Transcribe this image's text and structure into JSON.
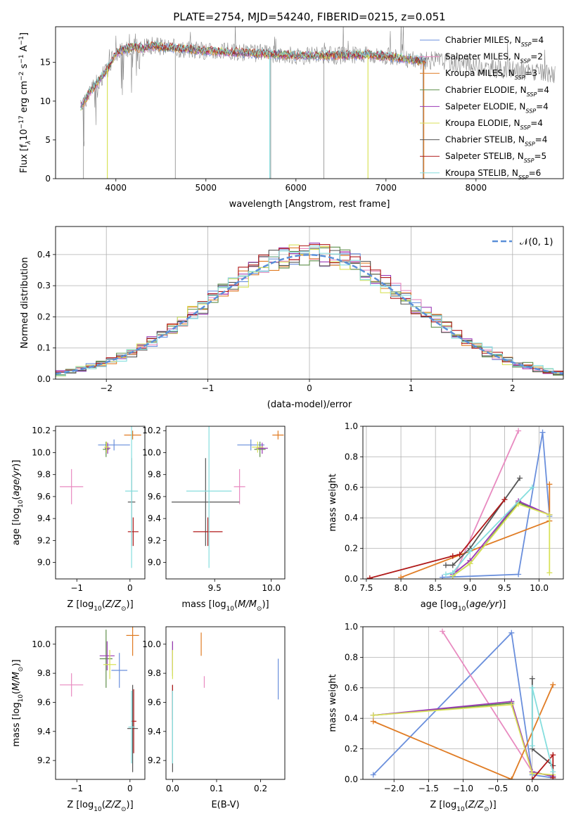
{
  "title": "PLATE=2754, MJD=54240, FIBERID=0215, z=0.051",
  "colors": {
    "miles_chab": "#6a8fdc",
    "miles_salp": "#e88ac0",
    "miles_kroupa": "#e07c24",
    "elodie_chab": "#5f8f4a",
    "elodie_salp": "#9b39b5",
    "elodie_kroupa": "#d9e25a",
    "stelib_chab": "#555555",
    "stelib_salp": "#b01a1a",
    "stelib_kroupa": "#85dede",
    "raw": "#888888",
    "gauss": "#5b8fd8"
  },
  "chart_data": [
    {
      "type": "line",
      "xlabel": "wavelength [Angstrom, rest frame]",
      "ylabel": "Flux [f_λ10^-17 erg cm^-2 s^-1 A^-1]",
      "xlim": [
        3330,
        8970
      ],
      "ylim": [
        0,
        19.6
      ],
      "xticks": [
        4000,
        5000,
        6000,
        7000,
        8000
      ],
      "yticks": [
        0,
        5,
        10,
        15
      ],
      "legend": "top-right",
      "series": [
        {
          "name": "Chabrier MILES, N_SSP=4",
          "ckey": "miles_chab"
        },
        {
          "name": "Salpeter MILES, N_SSP=2",
          "ckey": "miles_salp"
        },
        {
          "name": "Kroupa MILES, N_SSP=3",
          "ckey": "miles_kroupa"
        },
        {
          "name": "Chabrier ELODIE, N_SSP=4",
          "ckey": "elodie_chab"
        },
        {
          "name": "Salpeter ELODIE, N_SSP=4",
          "ckey": "elodie_salp"
        },
        {
          "name": "Kroupa ELODIE, N_SSP=4",
          "ckey": "elodie_kroupa"
        },
        {
          "name": "Chabrier STELIB, N_SSP=4",
          "ckey": "stelib_chab"
        },
        {
          "name": "Salpeter STELIB, N_SSP=5",
          "ckey": "stelib_salp"
        },
        {
          "name": "Kroupa STELIB, N_SSP=6",
          "ckey": "stelib_kroupa"
        }
      ],
      "continuum": {
        "x": [
          3600,
          3700,
          3800,
          3900,
          4000,
          4100,
          4200,
          4300,
          4400,
          4500,
          4700,
          5000,
          5500,
          6000,
          6500,
          6800,
          7000,
          7200,
          7400,
          7600,
          7800,
          8000,
          8200,
          8400,
          8600,
          8800
        ],
        "y": [
          9,
          11,
          12.5,
          14,
          16.2,
          16.7,
          17,
          16.8,
          17.2,
          17,
          16.8,
          16.5,
          16.2,
          15.9,
          15.9,
          16,
          15.8,
          15.5,
          15.2,
          15.3,
          14.9,
          14.5,
          14.2,
          14,
          13.8,
          13.5
        ]
      }
    },
    {
      "type": "step",
      "xlabel": "(data-model)/error",
      "ylabel": "Normed distribution",
      "xlim": [
        -2.5,
        2.5
      ],
      "ylim": [
        0,
        0.49
      ],
      "xticks": [
        -2,
        -1,
        0,
        1,
        2
      ],
      "yticks": [
        0.0,
        0.1,
        0.2,
        0.3,
        0.4
      ],
      "grid": true,
      "legend": "top-right",
      "gauss_label": "𝒩(0, 1)",
      "bin_width": 0.1
    },
    {
      "type": "errorbar",
      "xlabel": "Z [log10(Z/Z⊙)]",
      "ylabel": "age [log10(age/yr)]",
      "xlim": [
        -1.4,
        0.28
      ],
      "ylim": [
        8.85,
        10.24
      ],
      "xticks": [
        -1,
        0
      ],
      "yticks": [
        9.0,
        9.2,
        9.4,
        9.6,
        9.8,
        10.0,
        10.2
      ],
      "points": [
        {
          "ckey": "miles_chab",
          "x": -0.3,
          "xerr": 0.3,
          "y": 10.07,
          "yerr": 0.05
        },
        {
          "ckey": "miles_salp",
          "x": -1.1,
          "xerr": 0.22,
          "y": 9.69,
          "yerr": 0.16
        },
        {
          "ckey": "miles_kroupa",
          "x": 0.05,
          "xerr": 0.16,
          "y": 10.16,
          "yerr": 0.04
        },
        {
          "ckey": "elodie_chab",
          "x": -0.45,
          "xerr": 0.06,
          "y": 10.03,
          "yerr": 0.07
        },
        {
          "ckey": "elodie_salp",
          "x": -0.42,
          "xerr": 0.05,
          "y": 10.04,
          "yerr": 0.05
        },
        {
          "ckey": "elodie_kroupa",
          "x": -0.44,
          "xerr": 0.05,
          "y": 10.05,
          "yerr": 0.05
        },
        {
          "ckey": "stelib_chab",
          "x": 0.03,
          "xerr": 0.07,
          "y": 9.55,
          "yerr": 0.4
        },
        {
          "ckey": "stelib_salp",
          "x": 0.06,
          "xerr": 0.1,
          "y": 9.28,
          "yerr": 0.13
        },
        {
          "ckey": "stelib_kroupa",
          "x": 0.03,
          "xerr": 0.12,
          "y": 9.65,
          "yerr": 0.7
        }
      ]
    },
    {
      "type": "errorbar",
      "xlabel": "mass [log10(M/M⊙)]",
      "ylabel": "",
      "xlim": [
        9.07,
        10.12
      ],
      "ylim": [
        8.85,
        10.24
      ],
      "xticks": [
        9.5,
        10.0
      ],
      "yticks": [
        9.0,
        9.2,
        9.4,
        9.6,
        9.8,
        10.0,
        10.2
      ],
      "points": [
        {
          "ckey": "miles_chab",
          "x": 9.82,
          "xerr": 0.12,
          "y": 10.07,
          "yerr": 0.05
        },
        {
          "ckey": "miles_salp",
          "x": 9.72,
          "xerr": 0.05,
          "y": 9.69,
          "yerr": 0.16
        },
        {
          "ckey": "miles_kroupa",
          "x": 10.06,
          "xerr": 0.05,
          "y": 10.16,
          "yerr": 0.04
        },
        {
          "ckey": "elodie_chab",
          "x": 9.9,
          "xerr": 0.05,
          "y": 10.03,
          "yerr": 0.07
        },
        {
          "ckey": "elodie_salp",
          "x": 9.92,
          "xerr": 0.05,
          "y": 10.04,
          "yerr": 0.05
        },
        {
          "ckey": "elodie_kroupa",
          "x": 9.88,
          "xerr": 0.05,
          "y": 10.05,
          "yerr": 0.05
        },
        {
          "ckey": "stelib_chab",
          "x": 9.42,
          "xerr": 0.3,
          "y": 9.55,
          "yerr": 0.4
        },
        {
          "ckey": "stelib_salp",
          "x": 9.44,
          "xerr": 0.13,
          "y": 9.28,
          "yerr": 0.13
        },
        {
          "ckey": "stelib_kroupa",
          "x": 9.45,
          "xerr": 0.2,
          "y": 9.65,
          "yerr": 0.7
        }
      ]
    },
    {
      "type": "line",
      "xlabel": "age [log10(age/yr)]",
      "ylabel": "mass weight",
      "xlim": [
        7.45,
        10.35
      ],
      "ylim": [
        0,
        1.0
      ],
      "xticks": [
        7.5,
        8.0,
        8.5,
        9.0,
        9.5,
        10.0
      ],
      "yticks": [
        0.0,
        0.2,
        0.4,
        0.6,
        0.8,
        1.0
      ],
      "grid": true,
      "series": [
        {
          "ckey": "miles_chab",
          "x": [
            8.6,
            9.7,
            10.05,
            10.15
          ],
          "y": [
            0.01,
            0.03,
            0.96,
            0.41
          ]
        },
        {
          "ckey": "miles_salp",
          "x": [
            8.8,
            9.7
          ],
          "y": [
            0.05,
            0.97
          ]
        },
        {
          "ckey": "miles_kroupa",
          "x": [
            8.0,
            10.15,
            10.15
          ],
          "y": [
            0.01,
            0.38,
            0.62
          ]
        },
        {
          "ckey": "elodie_chab",
          "x": [
            8.75,
            9.0,
            9.7,
            10.15
          ],
          "y": [
            0.02,
            0.1,
            0.5,
            0.42
          ]
        },
        {
          "ckey": "elodie_salp",
          "x": [
            8.75,
            9.0,
            9.7,
            10.15
          ],
          "y": [
            0.03,
            0.12,
            0.51,
            0.42
          ]
        },
        {
          "ckey": "elodie_kroupa",
          "x": [
            8.75,
            9.0,
            9.7,
            10.15,
            10.15
          ],
          "y": [
            0.02,
            0.1,
            0.49,
            0.42,
            0.04
          ]
        },
        {
          "ckey": "stelib_chab",
          "x": [
            8.65,
            8.75,
            9.0,
            9.5,
            9.72
          ],
          "y": [
            0.09,
            0.09,
            0.2,
            0.52,
            0.66
          ]
        },
        {
          "ckey": "stelib_salp",
          "x": [
            7.55,
            8.75,
            8.85,
            9.5
          ],
          "y": [
            0.005,
            0.15,
            0.16,
            0.52
          ]
        },
        {
          "ckey": "stelib_kroupa",
          "x": [
            8.65,
            8.75,
            9.0,
            9.9
          ],
          "y": [
            0.03,
            0.04,
            0.18,
            0.6
          ]
        }
      ]
    },
    {
      "type": "errorbar",
      "xlabel": "Z [log10(Z/Z⊙)]",
      "ylabel": "mass [log10(M/M⊙)]",
      "xlim": [
        -1.4,
        0.28
      ],
      "ylim": [
        9.07,
        10.12
      ],
      "xticks": [
        -1,
        0
      ],
      "yticks": [
        9.2,
        9.4,
        9.6,
        9.8,
        10.0
      ],
      "points": [
        {
          "ckey": "miles_chab",
          "x": -0.2,
          "xerr": 0.15,
          "y": 9.82,
          "yerr": 0.12
        },
        {
          "ckey": "miles_salp",
          "x": -1.1,
          "xerr": 0.22,
          "y": 9.72,
          "yerr": 0.08
        },
        {
          "ckey": "miles_kroupa",
          "x": 0.05,
          "xerr": 0.12,
          "y": 10.06,
          "yerr": 0.14
        },
        {
          "ckey": "elodie_chab",
          "x": -0.45,
          "xerr": 0.12,
          "y": 9.9,
          "yerr": 0.2
        },
        {
          "ckey": "elodie_salp",
          "x": -0.43,
          "xerr": 0.14,
          "y": 9.92,
          "yerr": 0.1
        },
        {
          "ckey": "elodie_kroupa",
          "x": -0.38,
          "xerr": 0.12,
          "y": 9.86,
          "yerr": 0.1
        },
        {
          "ckey": "stelib_chab",
          "x": 0.05,
          "xerr": 0.1,
          "y": 9.42,
          "yerr": 0.3
        },
        {
          "ckey": "stelib_salp",
          "x": 0.07,
          "xerr": 0.05,
          "y": 9.47,
          "yerr": 0.22
        },
        {
          "ckey": "stelib_kroupa",
          "x": 0.03,
          "xerr": 0.06,
          "y": 9.43,
          "yerr": 0.25
        }
      ]
    },
    {
      "type": "errorbar",
      "xlabel": "E(B-V)",
      "ylabel": "",
      "xlim": [
        -0.015,
        0.255
      ],
      "ylim": [
        9.07,
        10.12
      ],
      "xticks": [
        0.0,
        0.1,
        0.2
      ],
      "yticks": [
        9.2,
        9.4,
        9.6,
        9.8,
        10.0
      ],
      "points": [
        {
          "ckey": "miles_chab",
          "x": 0.24,
          "xerr": 0,
          "y": 9.76,
          "yerr": 0.14
        },
        {
          "ckey": "miles_salp",
          "x": 0.072,
          "xerr": 0,
          "y": 9.74,
          "yerr": 0.04
        },
        {
          "ckey": "miles_kroupa",
          "x": 0.065,
          "xerr": 0,
          "y": 10.0,
          "yerr": 0.08
        },
        {
          "ckey": "elodie_chab",
          "x": 0.0,
          "xerr": 0,
          "y": 9.9,
          "yerr": 0.12
        },
        {
          "ckey": "elodie_salp",
          "x": 0.0,
          "xerr": 0,
          "y": 9.92,
          "yerr": 0.1
        },
        {
          "ckey": "elodie_kroupa",
          "x": 0.0,
          "xerr": 0,
          "y": 9.86,
          "yerr": 0.1
        },
        {
          "ckey": "stelib_chab",
          "x": 0.0,
          "xerr": 0,
          "y": 9.42,
          "yerr": 0.3
        },
        {
          "ckey": "stelib_salp",
          "x": 0.0,
          "xerr": 0,
          "y": 9.6,
          "yerr": 0.12
        },
        {
          "ckey": "stelib_kroupa",
          "x": 0.0,
          "xerr": 0,
          "y": 9.43,
          "yerr": 0.25
        }
      ]
    },
    {
      "type": "line",
      "xlabel": "Z [log10(Z/Z⊙)]",
      "ylabel": "mass weight",
      "xlim": [
        -2.45,
        0.45
      ],
      "ylim": [
        0,
        1.0
      ],
      "xticks": [
        -2.0,
        -1.5,
        -1.0,
        -0.5,
        0.0
      ],
      "yticks": [
        0.0,
        0.2,
        0.4,
        0.6,
        0.8,
        1.0
      ],
      "grid": true,
      "series": [
        {
          "ckey": "miles_chab",
          "x": [
            -2.3,
            -0.3,
            0.0,
            0.3
          ],
          "y": [
            0.03,
            0.96,
            0.03,
            0.01
          ]
        },
        {
          "ckey": "miles_salp",
          "x": [
            -1.3,
            0.0
          ],
          "y": [
            0.97,
            0.05
          ]
        },
        {
          "ckey": "miles_kroupa",
          "x": [
            -2.3,
            -0.3,
            0.3
          ],
          "y": [
            0.38,
            0.0,
            0.62
          ]
        },
        {
          "ckey": "elodie_chab",
          "x": [
            -2.3,
            -0.3,
            0.0,
            0.3
          ],
          "y": [
            0.42,
            0.5,
            0.05,
            0.02
          ]
        },
        {
          "ckey": "elodie_salp",
          "x": [
            -2.3,
            -0.3,
            0.0,
            0.3
          ],
          "y": [
            0.42,
            0.51,
            0.05,
            0.02
          ]
        },
        {
          "ckey": "elodie_kroupa",
          "x": [
            -2.3,
            -0.3,
            0.0,
            0.3
          ],
          "y": [
            0.42,
            0.49,
            0.04,
            0.03
          ]
        },
        {
          "ckey": "stelib_chab",
          "x": [
            0.0,
            0.0,
            0.3
          ],
          "y": [
            0.66,
            0.2,
            0.09
          ]
        },
        {
          "ckey": "stelib_salp",
          "x": [
            0.0,
            0.3,
            0.3
          ],
          "y": [
            0.0,
            0.16,
            0.01
          ]
        },
        {
          "ckey": "stelib_kroupa",
          "x": [
            0.0,
            0.0,
            0.3
          ],
          "y": [
            0.22,
            0.6,
            0.05
          ]
        }
      ]
    }
  ]
}
